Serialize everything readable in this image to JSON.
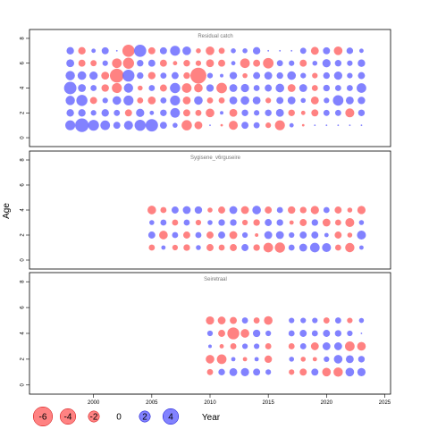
{
  "chart_data": {
    "type": "scatter",
    "subtype": "bubble",
    "ylabel": "Age",
    "xlabel": "Year",
    "xlim": [
      1994.5,
      2025.5
    ],
    "ylim": [
      -0.5,
      8.5
    ],
    "x_ticks": [
      2000,
      2005,
      2010,
      2015,
      2020,
      2025
    ],
    "y_ticks": [
      0,
      2,
      4,
      6,
      8
    ],
    "colors": {
      "positive": "#6666ff",
      "negative": "#ff6666"
    },
    "legend": [
      {
        "label": "-6",
        "value": -6
      },
      {
        "label": "-4",
        "value": -4
      },
      {
        "label": "-2",
        "value": -2
      },
      {
        "label": "0",
        "value": 0
      },
      {
        "label": "2",
        "value": 2
      },
      {
        "label": "4",
        "value": 4
      }
    ],
    "panels": [
      {
        "title": "Residual catch",
        "years": [
          1998,
          1999,
          2000,
          2001,
          2002,
          2003,
          2004,
          2005,
          2006,
          2007,
          2008,
          2009,
          2010,
          2011,
          2012,
          2013,
          2014,
          2015,
          2016,
          2017,
          2018,
          2019,
          2020,
          2021,
          2022,
          2023
        ],
        "ages": [
          1,
          2,
          3,
          4,
          5,
          6,
          7
        ],
        "residuals": [
          [
            1.6,
            3.0,
            1.9,
            1.5,
            0.8,
            1.3,
            2.0,
            2.5,
            0.8,
            0.4,
            -1.7,
            -1.0,
            0.0,
            -0.1,
            -1.3,
            0.8,
            0.6,
            -0.5,
            -1.6,
            0.3,
            -0.1,
            0.0,
            0.0,
            0.0,
            0.0,
            0.0
          ],
          [
            0.9,
            0.9,
            0.5,
            0.9,
            0.6,
            -0.8,
            1.1,
            0.3,
            0.7,
            1.5,
            -0.8,
            -0.6,
            -1.2,
            0.2,
            -1.0,
            0.7,
            0.5,
            0.7,
            1.0,
            -0.7,
            -0.3,
            -0.8,
            0.6,
            0.6,
            -1.3,
            0.7
          ],
          [
            1.4,
            2.0,
            -0.8,
            0.5,
            1.2,
            1.6,
            -0.6,
            -1.0,
            0.6,
            1.6,
            -1.0,
            1.2,
            -0.6,
            -0.6,
            1.0,
            1.2,
            1.0,
            -0.5,
            0.8,
            1.0,
            0.4,
            -1.0,
            0.5,
            1.8,
            1.0,
            0.9
          ],
          [
            2.5,
            1.0,
            0.6,
            -0.9,
            -1.6,
            1.4,
            -0.4,
            0.6,
            -0.8,
            1.7,
            -1.5,
            -1.2,
            0.9,
            -1.8,
            1.0,
            1.1,
            0.6,
            0.8,
            1.2,
            -1.0,
            1.0,
            -0.6,
            0.7,
            0.6,
            0.6,
            1.5
          ],
          [
            1.4,
            1.2,
            1.1,
            -1.0,
            -3.1,
            2.3,
            0.7,
            -0.9,
            0.6,
            0.8,
            -0.7,
            -4.1,
            0.5,
            0.2,
            0.9,
            -0.4,
            0.8,
            1.0,
            0.7,
            1.2,
            0.5,
            -0.5,
            0.7,
            1.1,
            0.5,
            0.8
          ],
          [
            1.0,
            -0.8,
            -0.6,
            0.5,
            -1.5,
            -2.0,
            0.7,
            0.8,
            -0.8,
            -0.3,
            -0.7,
            -0.5,
            -1.0,
            -0.8,
            0.3,
            -1.5,
            -0.8,
            -1.8,
            0.6,
            0.5,
            -0.8,
            0.4,
            1.1,
            0.7,
            0.5,
            0.9
          ],
          [
            0.9,
            -0.9,
            0.3,
            0.8,
            0.0,
            -2.4,
            2.4,
            -0.8,
            0.8,
            1.6,
            1.2,
            -0.4,
            -1.2,
            -0.6,
            0.4,
            0.4,
            0.9,
            0.0,
            0.0,
            0.0,
            0.6,
            -1.0,
            0.8,
            -1.2,
            0.7,
            0.3
          ]
        ]
      },
      {
        "title": "Sygisene_v6rguseire",
        "years": [
          2005,
          2006,
          2007,
          2008,
          2009,
          2010,
          2011,
          2012,
          2013,
          2014,
          2015,
          2016,
          2017,
          2018,
          2019,
          2020,
          2021,
          2022,
          2023
        ],
        "ages": [
          1,
          2,
          3,
          4
        ],
        "residuals": [
          [
            -0.6,
            0.3,
            -0.5,
            -0.7,
            0.4,
            -0.8,
            -0.6,
            -0.8,
            0.8,
            -0.7,
            -1.5,
            -1.7,
            0.6,
            1.0,
            1.5,
            1.3,
            -0.6,
            -1.4,
            0.3
          ],
          [
            0.8,
            -1.2,
            0.6,
            -0.8,
            0.6,
            -0.8,
            0.8,
            -1.0,
            0.5,
            -0.2,
            1.0,
            1.0,
            0.5,
            0.8,
            0.8,
            0.3,
            -0.8,
            -0.4,
            1.3
          ],
          [
            0.4,
            0.6,
            -0.6,
            0.6,
            -0.5,
            0.4,
            0.7,
            0.7,
            -0.5,
            -0.7,
            0.8,
            0.7,
            -0.3,
            -0.8,
            0.7,
            -1.0,
            -0.6,
            -1.3,
            0.4
          ],
          [
            -1.2,
            -0.6,
            0.8,
            1.0,
            0.9,
            -0.4,
            -0.8,
            1.0,
            -1.0,
            1.2,
            -0.8,
            0.6,
            -0.9,
            -0.7,
            -1.1,
            0.6,
            -0.8,
            -0.4,
            -1.1
          ]
        ]
      },
      {
        "title": "Seiretraal",
        "years": [
          2010,
          2011,
          2012,
          2013,
          2014,
          2015,
          2017,
          2018,
          2019,
          2020,
          2021,
          2022,
          2023
        ],
        "ages": [
          1,
          2,
          3,
          4,
          5
        ],
        "residuals": [
          [
            -0.6,
            0.7,
            1.0,
            1.1,
            0.8,
            0.5,
            -0.5,
            -0.8,
            0.8,
            -1.2,
            -1.4,
            1.2,
            1.1
          ],
          [
            -1.2,
            -1.5,
            0.3,
            -0.3,
            0.3,
            -0.9,
            0.4,
            -0.4,
            -0.3,
            0.5,
            1.2,
            1.0,
            0.7
          ],
          [
            0.2,
            -0.3,
            -0.6,
            0.5,
            0.5,
            -0.6,
            -0.6,
            0.6,
            -1.0,
            1.0,
            1.0,
            -1.5,
            -1.2
          ],
          [
            0.5,
            -0.8,
            -2.3,
            -1.2,
            0.9,
            0.5,
            0.6,
            0.8,
            0.6,
            0.8,
            0.7,
            0.5,
            0.0
          ],
          [
            -1.1,
            -1.0,
            -0.8,
            0.6,
            -0.6,
            -1.2,
            0.5,
            0.5,
            0.5,
            -0.6,
            0.6,
            -0.5,
            0.4
          ]
        ]
      }
    ]
  }
}
